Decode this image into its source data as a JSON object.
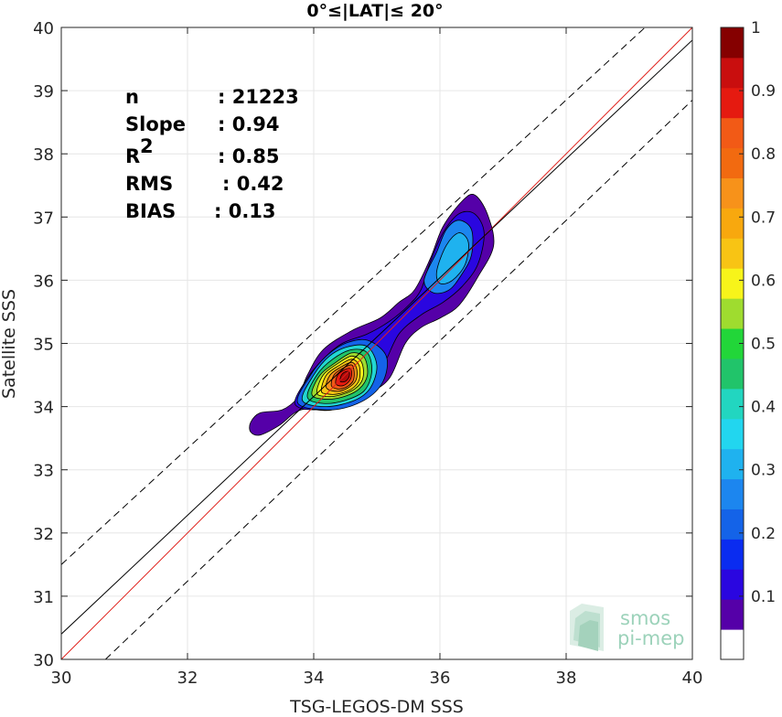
{
  "chart_data": {
    "type": "heatmap",
    "subtype": "density contour scatter",
    "title": "0°≤|LAT|≤ 20°",
    "xlabel": "TSG-LEGOS-DM SSS",
    "ylabel": "Satellite SSS",
    "xlim": [
      30,
      40
    ],
    "ylim": [
      30,
      40
    ],
    "xticks": [
      30,
      32,
      34,
      36,
      38,
      40
    ],
    "yticks": [
      30,
      31,
      32,
      33,
      34,
      35,
      36,
      37,
      38,
      39,
      40
    ],
    "grid": true,
    "stats": [
      {
        "label": "n",
        "value": ": 21223"
      },
      {
        "label": "Slope",
        "value": ": 0.94"
      },
      {
        "label": "R",
        "sup": "2",
        "value": ": 0.85"
      },
      {
        "label": "RMS",
        "value": ": 0.42"
      },
      {
        "label": "BIAS",
        "value": ": 0.13"
      }
    ],
    "lines": [
      {
        "name": "identity",
        "color": "#e0201b",
        "style": "solid",
        "x": [
          30,
          40
        ],
        "y": [
          30,
          40
        ]
      },
      {
        "name": "regression",
        "color": "#000000",
        "style": "solid",
        "x": [
          30,
          40
        ],
        "y": [
          30.4,
          39.8
        ]
      },
      {
        "name": "upper bound",
        "color": "#000000",
        "style": "dashed",
        "x": [
          30,
          39.25
        ],
        "y": [
          31.5,
          40
        ]
      },
      {
        "name": "lower bound",
        "color": "#000000",
        "style": "dashed",
        "x": [
          30.7,
          40
        ],
        "y": [
          30,
          38.85
        ]
      }
    ],
    "density_peak": {
      "x": 34.6,
      "y": 34.5,
      "value": 1.0
    },
    "contours": [
      {
        "level": 0.05,
        "color": "#5500a8",
        "points": [
          [
            33.0,
            33.6
          ],
          [
            33.0,
            33.75
          ],
          [
            33.15,
            33.9
          ],
          [
            33.5,
            33.95
          ],
          [
            33.75,
            34.15
          ],
          [
            33.9,
            34.5
          ],
          [
            34.15,
            34.9
          ],
          [
            34.6,
            35.2
          ],
          [
            35.05,
            35.4
          ],
          [
            35.35,
            35.65
          ],
          [
            35.6,
            35.85
          ],
          [
            35.85,
            36.35
          ],
          [
            36.05,
            36.85
          ],
          [
            36.35,
            37.25
          ],
          [
            36.55,
            37.35
          ],
          [
            36.75,
            37.05
          ],
          [
            36.85,
            36.55
          ],
          [
            36.6,
            36.05
          ],
          [
            36.3,
            35.6
          ],
          [
            36.0,
            35.4
          ],
          [
            35.7,
            35.25
          ],
          [
            35.45,
            35.0
          ],
          [
            35.2,
            34.45
          ],
          [
            34.85,
            34.2
          ],
          [
            34.3,
            33.95
          ],
          [
            33.8,
            33.95
          ],
          [
            33.45,
            33.7
          ],
          [
            33.15,
            33.55
          ]
        ]
      },
      {
        "level": 0.1,
        "color": "#2a06e0",
        "points": [
          [
            33.7,
            34.05
          ],
          [
            33.9,
            34.45
          ],
          [
            34.15,
            34.75
          ],
          [
            34.45,
            35.0
          ],
          [
            34.85,
            35.15
          ],
          [
            35.2,
            35.35
          ],
          [
            35.5,
            35.6
          ],
          [
            35.7,
            35.85
          ],
          [
            35.85,
            36.3
          ],
          [
            36.05,
            36.75
          ],
          [
            36.3,
            37.05
          ],
          [
            36.55,
            37.05
          ],
          [
            36.7,
            36.75
          ],
          [
            36.6,
            36.25
          ],
          [
            36.35,
            35.9
          ],
          [
            36.05,
            35.65
          ],
          [
            35.7,
            35.45
          ],
          [
            35.35,
            35.15
          ],
          [
            35.1,
            34.65
          ],
          [
            34.8,
            34.3
          ],
          [
            34.4,
            34.05
          ],
          [
            34.0,
            33.95
          ]
        ]
      },
      {
        "level": 0.2,
        "color": "#1463e8",
        "points": [
          [
            33.75,
            34.05
          ],
          [
            33.95,
            34.5
          ],
          [
            34.2,
            34.8
          ],
          [
            34.5,
            35.0
          ],
          [
            34.85,
            35.05
          ],
          [
            35.15,
            34.8
          ],
          [
            35.1,
            34.4
          ],
          [
            34.8,
            34.1
          ],
          [
            34.3,
            33.95
          ]
        ]
      },
      {
        "level": 0.25,
        "color": "#1c86ef",
        "points": [
          [
            35.75,
            36.0
          ],
          [
            35.95,
            36.45
          ],
          [
            36.1,
            36.8
          ],
          [
            36.3,
            36.95
          ],
          [
            36.5,
            36.8
          ],
          [
            36.5,
            36.4
          ],
          [
            36.35,
            36.1
          ],
          [
            36.15,
            35.85
          ],
          [
            35.9,
            35.8
          ]
        ]
      },
      {
        "level": 0.35,
        "color": "#1fb2ef",
        "points": [
          [
            35.95,
            36.15
          ],
          [
            36.1,
            36.55
          ],
          [
            36.3,
            36.75
          ],
          [
            36.45,
            36.6
          ],
          [
            36.4,
            36.25
          ],
          [
            36.2,
            36.0
          ],
          [
            36.0,
            35.95
          ]
        ]
      },
      {
        "level": 0.4,
        "color": "#22d6d3",
        "points": [
          [
            33.82,
            34.1
          ],
          [
            34.0,
            34.5
          ],
          [
            34.25,
            34.8
          ],
          [
            34.55,
            34.95
          ],
          [
            34.85,
            34.95
          ],
          [
            35.0,
            34.65
          ],
          [
            34.9,
            34.3
          ],
          [
            34.65,
            34.1
          ],
          [
            34.2,
            34.0
          ]
        ]
      },
      {
        "level": 0.5,
        "color": "#21c46a",
        "points": [
          [
            33.9,
            34.15
          ],
          [
            34.05,
            34.5
          ],
          [
            34.3,
            34.75
          ],
          [
            34.6,
            34.9
          ],
          [
            34.85,
            34.85
          ],
          [
            34.92,
            34.55
          ],
          [
            34.8,
            34.25
          ],
          [
            34.5,
            34.1
          ],
          [
            34.15,
            34.05
          ]
        ]
      },
      {
        "level": 0.6,
        "color": "#9fdc2f",
        "points": [
          [
            33.97,
            34.2
          ],
          [
            34.1,
            34.5
          ],
          [
            34.35,
            34.7
          ],
          [
            34.6,
            34.85
          ],
          [
            34.8,
            34.78
          ],
          [
            34.85,
            34.5
          ],
          [
            34.72,
            34.28
          ],
          [
            34.45,
            34.15
          ],
          [
            34.15,
            34.12
          ]
        ]
      },
      {
        "level": 0.65,
        "color": "#f7f41a",
        "points": [
          [
            34.05,
            34.22
          ],
          [
            34.15,
            34.5
          ],
          [
            34.38,
            34.68
          ],
          [
            34.6,
            34.8
          ],
          [
            34.76,
            34.7
          ],
          [
            34.78,
            34.45
          ],
          [
            34.65,
            34.28
          ],
          [
            34.4,
            34.18
          ],
          [
            34.2,
            34.16
          ]
        ]
      },
      {
        "level": 0.7,
        "color": "#f8c414",
        "points": [
          [
            34.12,
            34.25
          ],
          [
            34.2,
            34.5
          ],
          [
            34.4,
            34.65
          ],
          [
            34.6,
            34.75
          ],
          [
            34.72,
            34.65
          ],
          [
            34.72,
            34.42
          ],
          [
            34.6,
            34.28
          ],
          [
            34.38,
            34.2
          ],
          [
            34.22,
            34.2
          ]
        ]
      },
      {
        "level": 0.75,
        "color": "#f7921a",
        "points": [
          [
            34.2,
            34.3
          ],
          [
            34.26,
            34.5
          ],
          [
            34.42,
            34.62
          ],
          [
            34.6,
            34.7
          ],
          [
            34.68,
            34.6
          ],
          [
            34.67,
            34.42
          ],
          [
            34.55,
            34.3
          ],
          [
            34.38,
            34.24
          ]
        ]
      },
      {
        "level": 0.8,
        "color": "#f25a16",
        "points": [
          [
            34.28,
            34.33
          ],
          [
            34.32,
            34.5
          ],
          [
            34.45,
            34.6
          ],
          [
            34.6,
            34.66
          ],
          [
            34.64,
            34.55
          ],
          [
            34.62,
            34.4
          ],
          [
            34.5,
            34.3
          ],
          [
            34.38,
            34.28
          ]
        ]
      },
      {
        "level": 0.85,
        "color": "#e51a10",
        "points": [
          [
            34.35,
            34.36
          ],
          [
            34.38,
            34.5
          ],
          [
            34.48,
            34.58
          ],
          [
            34.58,
            34.6
          ],
          [
            34.6,
            34.5
          ],
          [
            34.56,
            34.4
          ],
          [
            34.46,
            34.33
          ]
        ]
      },
      {
        "level": 0.9,
        "color": "#b00a0a",
        "points": [
          [
            34.42,
            34.4
          ],
          [
            34.44,
            34.5
          ],
          [
            34.5,
            34.55
          ],
          [
            34.56,
            34.55
          ],
          [
            34.56,
            34.47
          ],
          [
            34.5,
            34.4
          ]
        ]
      }
    ],
    "colorbar": {
      "range": [
        0,
        1
      ],
      "ticks": [
        0.1,
        0.2,
        0.3,
        0.4,
        0.5,
        0.6,
        0.7,
        0.8,
        0.9,
        1
      ],
      "tick_labels": [
        "0.1",
        "0.2",
        "0.3",
        "0.4",
        "0.5",
        "0.6",
        "0.7",
        "0.8",
        "0.9",
        "1"
      ],
      "colors": [
        "#ffffff",
        "#5500a8",
        "#2a06e0",
        "#0a2cf0",
        "#1463e8",
        "#1c86ef",
        "#1fb2ef",
        "#22d6ef",
        "#22d6c0",
        "#21c46a",
        "#22d639",
        "#9fdc2f",
        "#f7f41a",
        "#f8c414",
        "#f8a80e",
        "#f7921a",
        "#f26a10",
        "#f25a16",
        "#e51a10",
        "#c90e0e",
        "#850000"
      ]
    },
    "watermark": {
      "line1": "smos",
      "line2": "pi-mep"
    }
  }
}
